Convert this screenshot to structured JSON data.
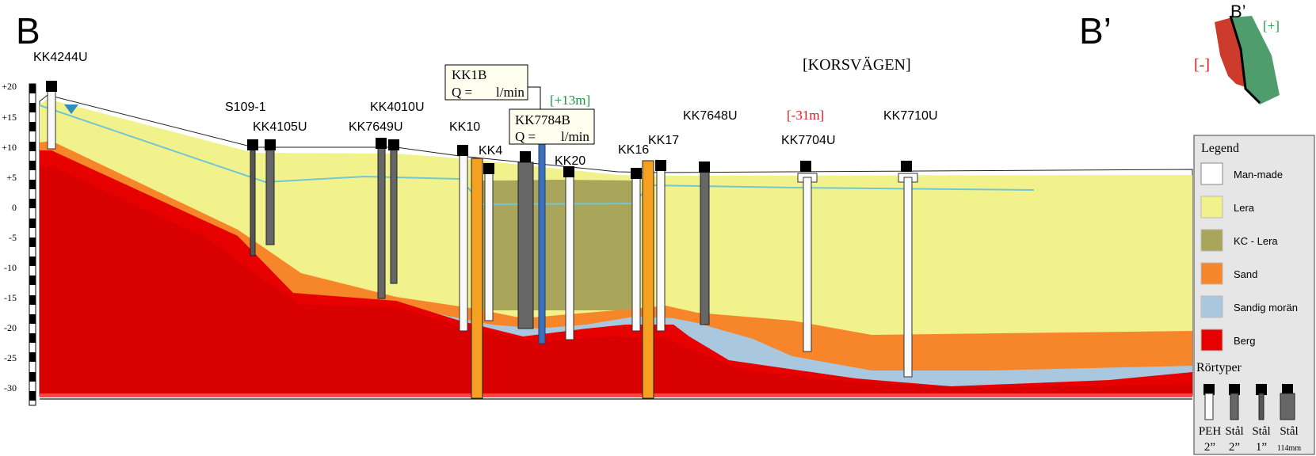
{
  "section": {
    "start_label": "B",
    "end_label": "B’",
    "location_label": "[KORSVÄGEN]"
  },
  "axis": {
    "ticks": [
      "+20",
      "+15",
      "+10",
      "+5",
      "0",
      "-5",
      "-10",
      "-15",
      "-20",
      "-25",
      "-30"
    ]
  },
  "wells": [
    {
      "id": "KK4244U"
    },
    {
      "id": "S109-1"
    },
    {
      "id": "KK4105U"
    },
    {
      "id": "KK4010U"
    },
    {
      "id": "KK7649U"
    },
    {
      "id": "KK10"
    },
    {
      "id": "KK4"
    },
    {
      "id": "KK20"
    },
    {
      "id": "KK16"
    },
    {
      "id": "KK17"
    },
    {
      "id": "KK7648U"
    },
    {
      "id": "KK7704U"
    },
    {
      "id": "KK7710U"
    }
  ],
  "flow_boxes": [
    {
      "id": "KK1B",
      "q_label": "Q =",
      "unit": "l/min"
    },
    {
      "id": "KK7784B",
      "q_label": "Q =",
      "unit": "l/min"
    }
  ],
  "offsets": {
    "plus": "[+13m]",
    "minus": "[-31m]",
    "plus_color": "#1a9641",
    "minus_color": "#d7191c"
  },
  "inset_map": {
    "label": "B’",
    "plus": "[+]",
    "minus": "[-]"
  },
  "legend": {
    "title": "Legend",
    "items": [
      {
        "label": "Man-made",
        "color": "#ffffff"
      },
      {
        "label": "Lera",
        "color": "#f1f28b"
      },
      {
        "label": "KC - Lera",
        "color": "#a9a55a"
      },
      {
        "label": "Sand",
        "color": "#f7862a"
      },
      {
        "label": "Sandig morän",
        "color": "#a9c7df"
      },
      {
        "label": "Berg",
        "color": "#e60000"
      }
    ],
    "pipe_title": "Rörtyper",
    "pipe_types": [
      {
        "line1": "PEH",
        "line2": "2”"
      },
      {
        "line1": "Stål",
        "line2": "2”"
      },
      {
        "line1": "Stål",
        "line2": "1”"
      },
      {
        "line1": "Stål",
        "line2": "114mm"
      }
    ]
  },
  "colors": {
    "water_table": "#72c7d4",
    "deep_rock": "#d80000",
    "orange_pipe": "#f5a020",
    "blue_pipe": "#3d6fb6",
    "grey_pipe": "#606060"
  }
}
